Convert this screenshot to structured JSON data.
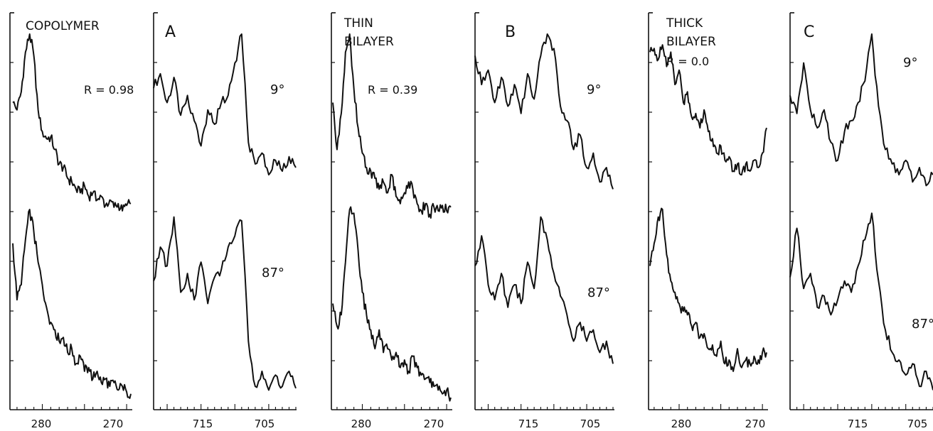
{
  "figure": {
    "ink_color": "#111111",
    "background": "#ffffff"
  },
  "chart_data": [
    {
      "type": "line",
      "panel": "copolymer",
      "title": "COPOLYMER",
      "annotation": "R = 0.98",
      "xlabel": "",
      "ylabel": "",
      "xlim": [
        283.5,
        269.5
      ],
      "x_ticks": [
        280,
        270
      ],
      "grid": false,
      "series": [
        {
          "name": "",
          "x": [
            283.5,
            283.0,
            282.5,
            282.0,
            281.5,
            281.0,
            280.5,
            280.0,
            279.5,
            279.0,
            278.5,
            278.0,
            277.5,
            277.0,
            276.5,
            276.0,
            275.5,
            275.0,
            274.5,
            274.0,
            273.5,
            273.0,
            272.5,
            272.0,
            271.5,
            271.0,
            270.5,
            270.0,
            269.5
          ],
          "values": [
            0.62,
            0.58,
            0.68,
            0.9,
            1.0,
            0.88,
            0.58,
            0.46,
            0.42,
            0.43,
            0.36,
            0.28,
            0.26,
            0.2,
            0.18,
            0.14,
            0.12,
            0.16,
            0.1,
            0.12,
            0.08,
            0.1,
            0.05,
            0.08,
            0.04,
            0.06,
            0.02,
            0.05,
            0.06
          ]
        },
        {
          "name": "",
          "x": [
            283.5,
            283.0,
            282.5,
            282.0,
            281.5,
            281.0,
            280.5,
            280.0,
            279.5,
            279.0,
            278.5,
            278.0,
            277.5,
            277.0,
            276.5,
            276.0,
            275.5,
            275.0,
            274.5,
            274.0,
            273.5,
            273.0,
            272.5,
            272.0,
            271.5,
            271.0,
            270.5,
            270.0,
            269.5
          ],
          "values": [
            0.82,
            0.52,
            0.6,
            0.84,
            1.0,
            0.88,
            0.72,
            0.6,
            0.48,
            0.4,
            0.36,
            0.3,
            0.32,
            0.24,
            0.26,
            0.18,
            0.22,
            0.14,
            0.16,
            0.1,
            0.14,
            0.08,
            0.1,
            0.06,
            0.08,
            0.04,
            0.06,
            0.03,
            0.02
          ]
        }
      ]
    },
    {
      "type": "line",
      "panel": "A",
      "title": "A",
      "angle_labels": [
        "9°",
        "87°"
      ],
      "xlabel": "",
      "ylabel": "",
      "xlim": [
        722,
        701
      ],
      "x_ticks": [
        715,
        705
      ],
      "grid": false,
      "series": [
        {
          "name": "9°",
          "x": [
            722,
            721,
            720,
            719,
            718,
            717,
            716,
            715,
            714,
            713,
            712,
            711,
            710,
            709,
            708,
            707,
            706,
            705,
            704,
            703,
            702,
            701
          ],
          "values": [
            0.7,
            0.78,
            0.62,
            0.76,
            0.55,
            0.66,
            0.52,
            0.38,
            0.58,
            0.5,
            0.62,
            0.66,
            0.84,
            1.0,
            0.4,
            0.28,
            0.34,
            0.22,
            0.3,
            0.24,
            0.32,
            0.26
          ]
        },
        {
          "name": "87°",
          "x": [
            722,
            721,
            720,
            719,
            718,
            717,
            716,
            715,
            714,
            713,
            712,
            711,
            710,
            709,
            708,
            707,
            706,
            705,
            704,
            703,
            702,
            701
          ],
          "values": [
            0.62,
            0.8,
            0.7,
            0.96,
            0.56,
            0.66,
            0.52,
            0.72,
            0.5,
            0.64,
            0.68,
            0.8,
            0.86,
            0.94,
            0.3,
            0.06,
            0.14,
            0.04,
            0.12,
            0.06,
            0.14,
            0.05
          ]
        }
      ]
    },
    {
      "type": "line",
      "panel": "thin_bilayer",
      "title": "THIN BILAYER",
      "annotation": "R = 0.39",
      "xlabel": "",
      "ylabel": "",
      "xlim": [
        283.5,
        269.5
      ],
      "x_ticks": [
        280,
        270
      ],
      "grid": false,
      "series": [
        {
          "name": "",
          "x": [
            283.5,
            283.0,
            282.5,
            282.0,
            281.5,
            281.0,
            280.5,
            280.0,
            279.5,
            279.0,
            278.5,
            278.0,
            277.5,
            277.0,
            276.5,
            276.0,
            275.5,
            275.0,
            274.5,
            274.0,
            273.5,
            273.0,
            272.5,
            272.0,
            271.5,
            271.0,
            270.5,
            270.0,
            269.5
          ],
          "values": [
            0.62,
            0.36,
            0.56,
            0.9,
            1.0,
            0.7,
            0.48,
            0.34,
            0.26,
            0.24,
            0.2,
            0.14,
            0.18,
            0.12,
            0.22,
            0.1,
            0.06,
            0.12,
            0.18,
            0.14,
            0.06,
            0.02,
            0.06,
            0.0,
            0.04,
            0.02,
            0.05,
            0.02,
            0.04
          ]
        },
        {
          "name": "",
          "x": [
            283.5,
            283.0,
            282.5,
            282.0,
            281.5,
            281.0,
            280.5,
            280.0,
            279.5,
            279.0,
            278.5,
            278.0,
            277.5,
            277.0,
            276.5,
            276.0,
            275.5,
            275.0,
            274.5,
            274.0,
            273.5,
            273.0,
            272.5,
            272.0,
            271.5,
            271.0,
            270.5,
            270.0,
            269.5
          ],
          "values": [
            0.5,
            0.38,
            0.44,
            0.72,
            1.0,
            0.98,
            0.78,
            0.56,
            0.44,
            0.36,
            0.26,
            0.36,
            0.24,
            0.26,
            0.2,
            0.24,
            0.16,
            0.2,
            0.14,
            0.22,
            0.16,
            0.12,
            0.1,
            0.08,
            0.06,
            0.04,
            0.02,
            0.04,
            0.0
          ]
        }
      ]
    },
    {
      "type": "line",
      "panel": "B",
      "title": "B",
      "angle_labels": [
        "9°",
        "87°"
      ],
      "xlabel": "",
      "ylabel": "",
      "xlim": [
        722,
        701
      ],
      "x_ticks": [
        715,
        705
      ],
      "grid": false,
      "series": [
        {
          "name": "9°",
          "x": [
            722,
            721,
            720,
            719,
            718,
            717,
            716,
            715,
            714,
            713,
            712,
            711,
            710,
            709,
            708,
            707,
            706,
            705,
            704,
            703,
            702,
            701
          ],
          "values": [
            0.88,
            0.72,
            0.8,
            0.62,
            0.76,
            0.6,
            0.72,
            0.56,
            0.78,
            0.64,
            0.88,
            1.0,
            0.92,
            0.6,
            0.52,
            0.36,
            0.44,
            0.26,
            0.34,
            0.18,
            0.26,
            0.14
          ]
        },
        {
          "name": "87°",
          "x": [
            722,
            721,
            720,
            719,
            718,
            717,
            716,
            715,
            714,
            713,
            712,
            711,
            710,
            709,
            708,
            707,
            706,
            705,
            704,
            703,
            702,
            701
          ],
          "values": [
            0.7,
            0.86,
            0.6,
            0.52,
            0.66,
            0.48,
            0.6,
            0.5,
            0.72,
            0.58,
            0.96,
            0.84,
            0.66,
            0.54,
            0.44,
            0.3,
            0.4,
            0.3,
            0.36,
            0.24,
            0.3,
            0.18
          ]
        }
      ]
    },
    {
      "type": "line",
      "panel": "thick_bilayer",
      "title": "THICK BILAYER",
      "annotation": "R = 0.0",
      "xlabel": "",
      "ylabel": "",
      "xlim": [
        283.5,
        269.5
      ],
      "x_ticks": [
        280,
        270
      ],
      "grid": false,
      "series": [
        {
          "name": "",
          "x": [
            283.5,
            283.0,
            282.5,
            282.0,
            281.5,
            281.0,
            280.5,
            280.0,
            279.5,
            279.0,
            278.5,
            278.0,
            277.5,
            277.0,
            276.5,
            276.0,
            275.5,
            275.0,
            274.5,
            274.0,
            273.5,
            273.0,
            272.5,
            272.0,
            271.5,
            271.0,
            270.5,
            270.0,
            269.5
          ],
          "values": [
            0.9,
            0.92,
            0.86,
            0.94,
            0.82,
            0.9,
            0.72,
            0.8,
            0.62,
            0.68,
            0.54,
            0.56,
            0.48,
            0.58,
            0.46,
            0.42,
            0.34,
            0.38,
            0.3,
            0.32,
            0.24,
            0.28,
            0.22,
            0.28,
            0.24,
            0.3,
            0.26,
            0.34,
            0.48
          ]
        },
        {
          "name": "",
          "x": [
            283.5,
            283.0,
            282.5,
            282.0,
            281.5,
            281.0,
            280.5,
            280.0,
            279.5,
            279.0,
            278.5,
            278.0,
            277.5,
            277.0,
            276.5,
            276.0,
            275.5,
            275.0,
            274.5,
            274.0,
            273.5,
            273.0,
            272.5,
            272.0,
            271.5,
            271.0,
            270.5,
            270.0,
            269.5
          ],
          "values": [
            0.7,
            0.82,
            0.96,
            1.0,
            0.76,
            0.62,
            0.56,
            0.5,
            0.46,
            0.44,
            0.38,
            0.4,
            0.32,
            0.34,
            0.26,
            0.28,
            0.22,
            0.3,
            0.18,
            0.2,
            0.14,
            0.26,
            0.16,
            0.2,
            0.18,
            0.22,
            0.2,
            0.24,
            0.24
          ]
        }
      ]
    },
    {
      "type": "line",
      "panel": "C",
      "title": "C",
      "angle_labels": [
        "9°",
        "87°"
      ],
      "xlabel": "",
      "ylabel": "",
      "xlim": [
        722,
        701
      ],
      "x_ticks": [
        715,
        705
      ],
      "grid": false,
      "series": [
        {
          "name": "9°",
          "x": [
            722,
            721,
            720,
            719,
            718,
            717,
            716,
            715,
            714,
            713,
            712,
            711,
            710,
            709,
            708,
            707,
            706,
            705,
            704,
            703,
            702,
            701
          ],
          "values": [
            0.66,
            0.56,
            0.84,
            0.58,
            0.48,
            0.58,
            0.4,
            0.3,
            0.46,
            0.52,
            0.62,
            0.74,
            1.0,
            0.6,
            0.36,
            0.28,
            0.22,
            0.3,
            0.18,
            0.26,
            0.16,
            0.22
          ]
        },
        {
          "name": "87°",
          "x": [
            722,
            721,
            720,
            719,
            718,
            717,
            716,
            715,
            714,
            713,
            712,
            711,
            710,
            709,
            708,
            707,
            706,
            705,
            704,
            703,
            702,
            701
          ],
          "values": [
            0.64,
            0.9,
            0.58,
            0.66,
            0.48,
            0.54,
            0.44,
            0.52,
            0.62,
            0.56,
            0.7,
            0.84,
            0.98,
            0.62,
            0.36,
            0.24,
            0.2,
            0.12,
            0.18,
            0.06,
            0.14,
            0.04
          ]
        }
      ]
    }
  ]
}
